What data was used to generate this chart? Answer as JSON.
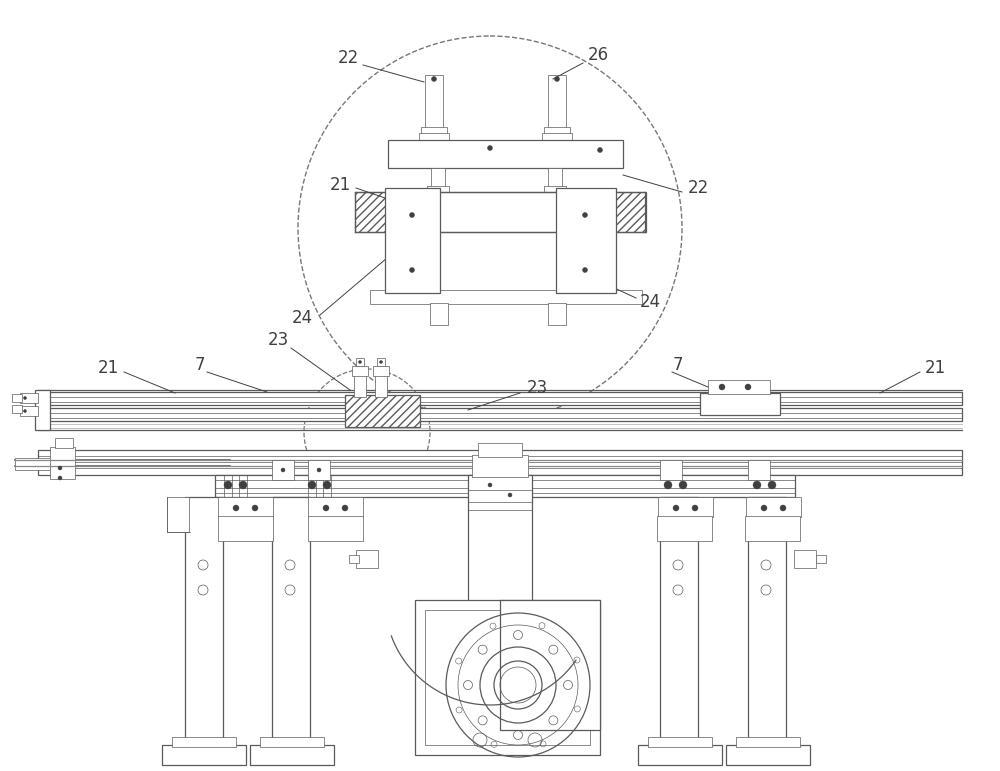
{
  "bg_color": "#ffffff",
  "line_color": "#5a5a5a",
  "label_color": "#404040",
  "fig_width": 10.0,
  "fig_height": 7.71,
  "dpi": 100,
  "lw_main": 0.9,
  "lw_thin": 0.5,
  "lw_label": 0.7,
  "label_fs": 12
}
